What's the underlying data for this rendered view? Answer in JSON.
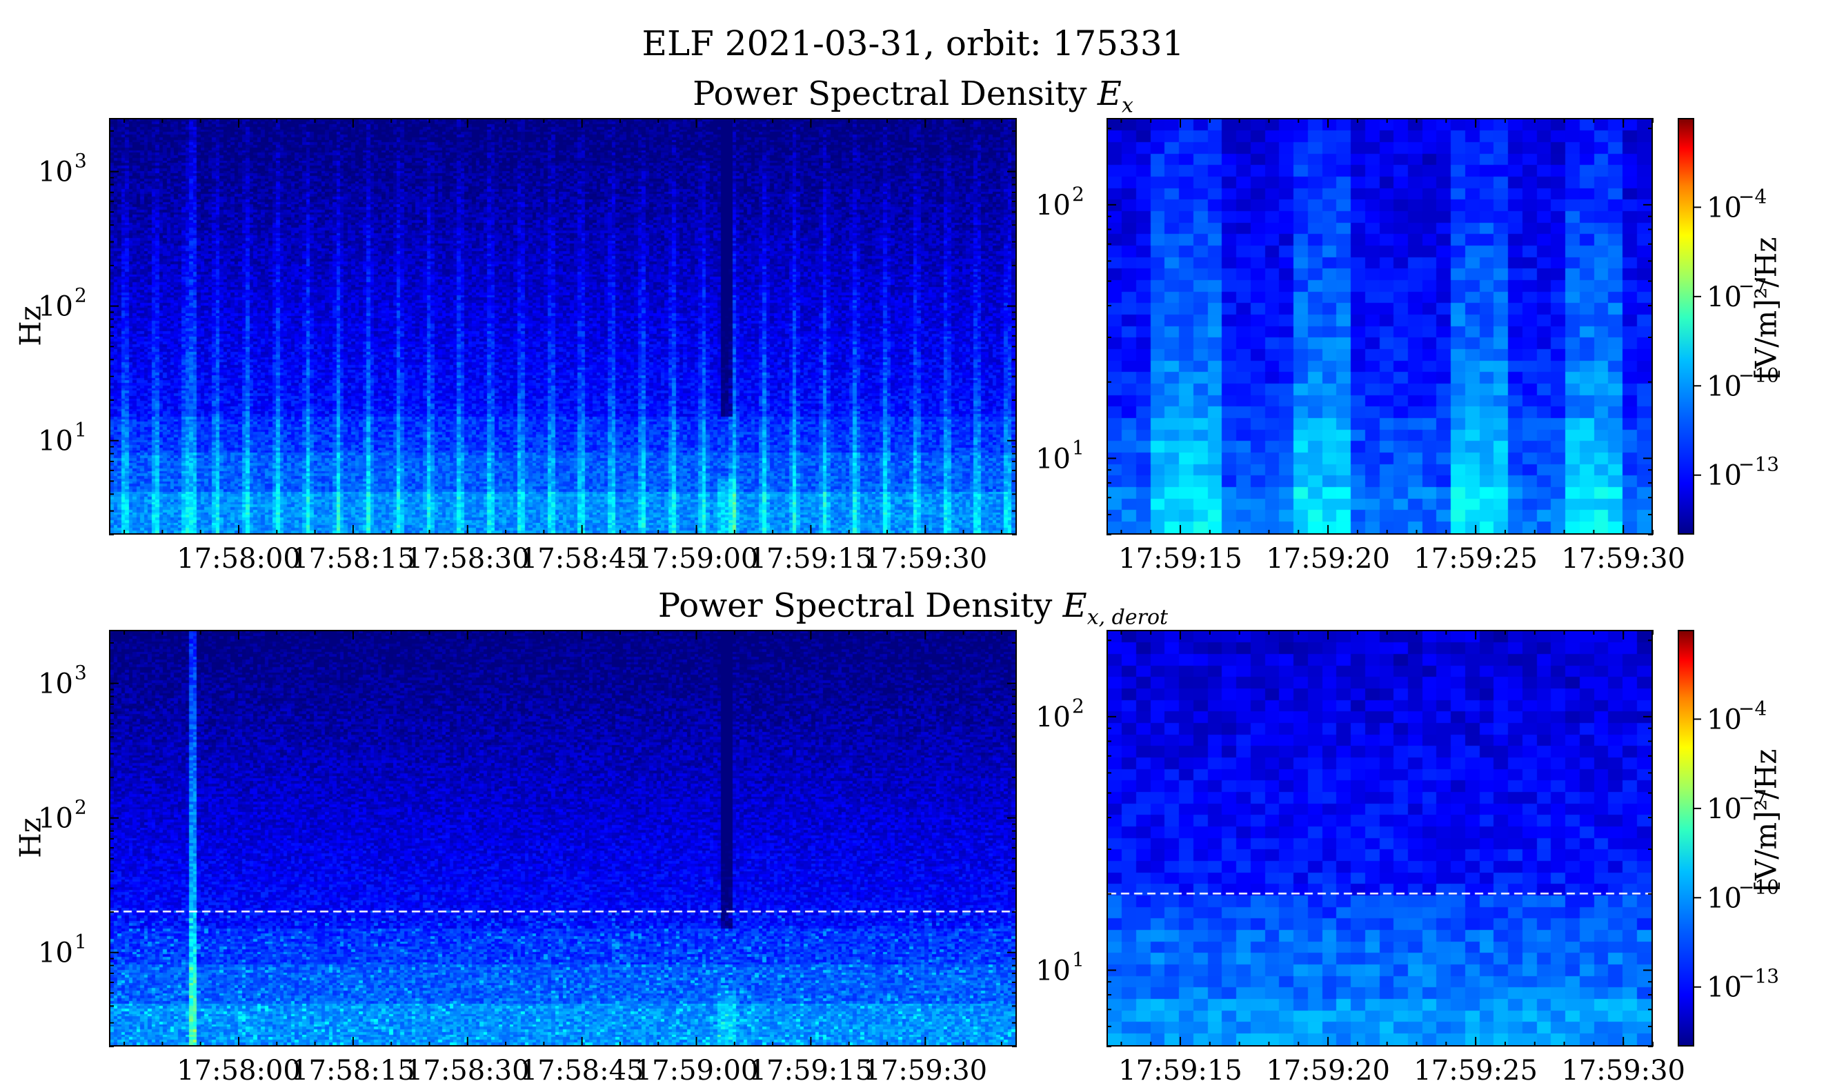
{
  "figure": {
    "suptitle": "ELF 2021-03-31, orbit: 175331",
    "row_titles": [
      {
        "prefix": "Power Spectral Density ",
        "var": "E",
        "sub": "x"
      },
      {
        "prefix": "Power Spectral Density ",
        "var": "E",
        "sub": "x, derot"
      }
    ],
    "ylabel": "Hz",
    "colorbar_label": "[V/m]²/Hz",
    "colormap": "jet"
  },
  "chart_data": [
    {
      "type": "heatmap",
      "panel": "top-left",
      "title": "Power Spectral Density Ex",
      "ylabel": "Hz",
      "yscale": "log",
      "ylim": [
        2,
        2500
      ],
      "x_range": [
        "17:57:43",
        "17:59:42"
      ],
      "xticks": [
        "17:58:00",
        "17:58:15",
        "17:58:30",
        "17:58:45",
        "17:59:00",
        "17:59:15",
        "17:59:30"
      ],
      "yticks": [
        "10^1",
        "10^2",
        "10^3"
      ],
      "spike_times": [
        "17:57:45",
        "17:57:49",
        "17:57:53",
        "17:57:57",
        "17:58:01",
        "17:58:05",
        "17:58:09",
        "17:58:13",
        "17:58:17",
        "17:58:21",
        "17:58:25",
        "17:58:29",
        "17:58:33",
        "17:58:37",
        "17:58:41",
        "17:58:45",
        "17:58:49",
        "17:58:53",
        "17:58:57",
        "17:59:01",
        "17:59:05",
        "17:59:09",
        "17:59:13",
        "17:59:17",
        "17:59:21",
        "17:59:25",
        "17:59:29",
        "17:59:33",
        "17:59:37",
        "17:59:41"
      ],
      "dark_band_time": "17:59:04",
      "strong_spike_time": "17:57:54",
      "dashed_line_hz": null
    },
    {
      "type": "heatmap",
      "panel": "top-right",
      "yscale": "log",
      "ylim": [
        5,
        220
      ],
      "x_range": [
        "17:59:12.5",
        "17:59:31"
      ],
      "xticks": [
        "17:59:15",
        "17:59:20",
        "17:59:25",
        "17:59:30"
      ],
      "yticks": [
        "10^1",
        "10^2"
      ],
      "bright_intervals": [
        [
          "17:59:14",
          "17:59:16.5"
        ],
        [
          "17:59:19",
          "17:59:21"
        ],
        [
          "17:59:24",
          "17:59:26"
        ],
        [
          "17:59:28",
          "17:59:30"
        ]
      ],
      "dashed_line_hz": null
    },
    {
      "type": "heatmap",
      "panel": "bottom-left",
      "title": "Power Spectral Density Ex,derot",
      "ylabel": "Hz",
      "yscale": "log",
      "ylim": [
        2,
        2500
      ],
      "x_range": [
        "17:57:43",
        "17:59:42"
      ],
      "xticks": [
        "17:58:00",
        "17:58:15",
        "17:58:30",
        "17:58:45",
        "17:59:00",
        "17:59:15",
        "17:59:30"
      ],
      "yticks": [
        "10^1",
        "10^2",
        "10^3"
      ],
      "dark_band_time": "17:59:04",
      "strong_spike_time": "17:57:54",
      "dashed_line_hz": 20
    },
    {
      "type": "heatmap",
      "panel": "bottom-right",
      "yscale": "log",
      "ylim": [
        5,
        220
      ],
      "x_range": [
        "17:59:12.5",
        "17:59:31"
      ],
      "xticks": [
        "17:59:15",
        "17:59:20",
        "17:59:25",
        "17:59:30"
      ],
      "yticks": [
        "10^1",
        "10^2"
      ],
      "dashed_line_hz": 20
    }
  ],
  "colorbar": {
    "scale": "log",
    "range": [
      "10^-15",
      "10^-1"
    ],
    "ticks": [
      {
        "base": "10",
        "exp": "−4",
        "value_exp": -4
      },
      {
        "base": "10",
        "exp": "−7",
        "value_exp": -7
      },
      {
        "base": "10",
        "exp": "−10",
        "value_exp": -10
      },
      {
        "base": "10",
        "exp": "−13",
        "value_exp": -13
      }
    ]
  }
}
